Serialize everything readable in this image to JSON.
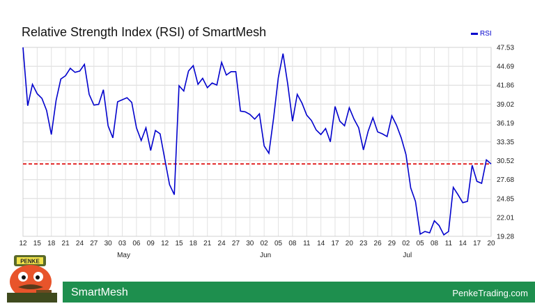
{
  "chart_data": {
    "type": "line",
    "title": "Relative Strength Index (RSI) of SmartMesh",
    "legend": "RSI",
    "series_color": "#0000cc",
    "reference_line": {
      "value": 30.1,
      "color": "#dd0000",
      "style": "dashed"
    },
    "y_ticks": [
      "47.53",
      "44.69",
      "41.86",
      "39.02",
      "36.19",
      "33.35",
      "30.52",
      "27.68",
      "24.85",
      "22.01",
      "19.28"
    ],
    "ylim": [
      19.28,
      47.53
    ],
    "x_ticks": [
      "12",
      "15",
      "18",
      "21",
      "24",
      "27",
      "30",
      "03",
      "06",
      "09",
      "12",
      "15",
      "18",
      "21",
      "24",
      "27",
      "30",
      "02",
      "05",
      "08",
      "11",
      "14",
      "17",
      "20",
      "23",
      "26",
      "29",
      "02",
      "05",
      "08",
      "11",
      "14",
      "17",
      "20"
    ],
    "months": [
      {
        "label": "May",
        "tick_index": 7
      },
      {
        "label": "Jun",
        "tick_index": 17
      },
      {
        "label": "Jul",
        "tick_index": 27
      }
    ],
    "values": [
      47.53,
      38.8,
      42.0,
      40.6,
      39.9,
      38.1,
      34.5,
      39.6,
      42.8,
      43.3,
      44.4,
      43.8,
      44.0,
      45.0,
      40.5,
      38.9,
      39.0,
      41.2,
      35.8,
      34.0,
      39.4,
      39.7,
      40.0,
      39.3,
      35.5,
      33.6,
      35.5,
      32.1,
      35.1,
      34.6,
      30.8,
      27.0,
      25.5,
      41.8,
      41.0,
      44.0,
      44.8,
      42.0,
      42.9,
      41.5,
      42.2,
      41.9,
      45.3,
      43.4,
      43.9,
      43.9,
      38.0,
      37.9,
      37.5,
      36.8,
      37.6,
      32.8,
      31.7,
      37.0,
      43.0,
      46.6,
      42.0,
      36.5,
      40.5,
      39.2,
      37.4,
      36.6,
      35.2,
      34.5,
      35.4,
      33.4,
      38.7,
      36.5,
      35.8,
      38.5,
      36.8,
      35.5,
      32.2,
      35.0,
      37.0,
      34.9,
      34.6,
      34.2,
      37.3,
      35.9,
      34.0,
      31.5,
      26.5,
      24.5,
      19.6,
      20.0,
      19.8,
      21.6,
      20.9,
      19.5,
      20.0,
      26.6,
      25.5,
      24.3,
      24.5,
      29.9,
      27.5,
      27.2,
      30.7,
      30.1
    ]
  },
  "footer": {
    "name": "SmartMesh",
    "site": "PenkeTrading.com"
  },
  "mascot": {
    "badge": "PENKE"
  }
}
